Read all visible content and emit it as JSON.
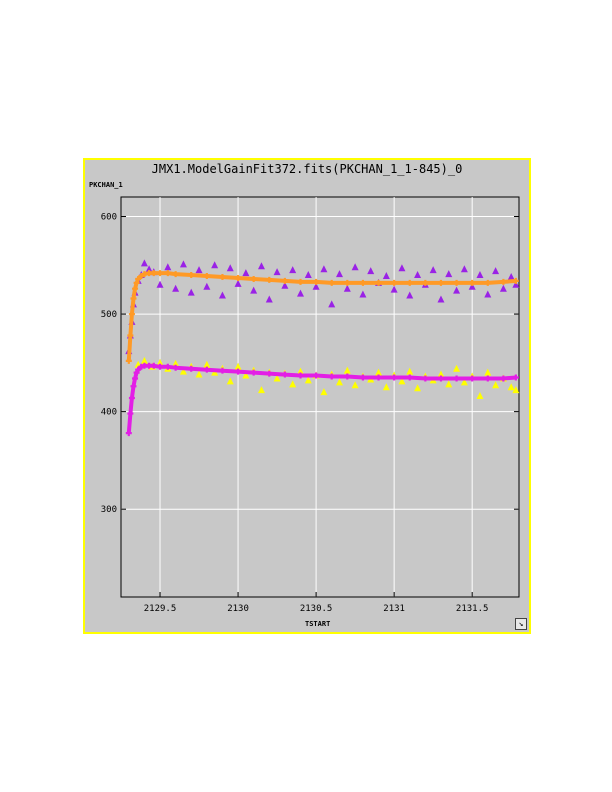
{
  "window": {
    "title": "JMX1.ModelGainFit372.fits(PKCHAN_1_1-845)_0"
  },
  "colors": {
    "panel_bg": "#c8c8c8",
    "panel_border": "#ffff00",
    "grid": "#ffffff",
    "series_upper_data": "#9a22e6",
    "series_upper_fit": "#ff9a26",
    "series_lower_data": "#ffff00",
    "series_lower_fit": "#e31ee6"
  },
  "chart_data": {
    "type": "scatter",
    "title": "JMX1.ModelGainFit372.fits(PKCHAN_1_1-845)_0",
    "xlabel": "TSTART",
    "ylabel": "PKCHAN_1",
    "xlim": [
      2129.25,
      2131.8
    ],
    "ylim": [
      210,
      620
    ],
    "xticks": [
      2129.5,
      2130,
      2130.5,
      2131,
      2131.5
    ],
    "xtick_labels": [
      "2129.5",
      "2130",
      "2130.5",
      "2131",
      "2131.5"
    ],
    "yticks": [
      300,
      400,
      500,
      600
    ],
    "ytick_labels": [
      "300",
      "400",
      "500",
      "600"
    ],
    "grid": true,
    "series": [
      {
        "marker": "triangle",
        "color": "#9a22e6",
        "x": [
          2129.3,
          2129.31,
          2129.32,
          2129.33,
          2129.34,
          2129.36,
          2129.38,
          2129.4,
          2129.43,
          2129.46,
          2129.5,
          2129.55,
          2129.6,
          2129.65,
          2129.7,
          2129.75,
          2129.8,
          2129.85,
          2129.9,
          2129.95,
          2130.0,
          2130.05,
          2130.1,
          2130.15,
          2130.2,
          2130.25,
          2130.3,
          2130.35,
          2130.4,
          2130.45,
          2130.5,
          2130.55,
          2130.6,
          2130.65,
          2130.7,
          2130.75,
          2130.8,
          2130.85,
          2130.9,
          2130.95,
          2131.0,
          2131.05,
          2131.1,
          2131.15,
          2131.2,
          2131.25,
          2131.3,
          2131.35,
          2131.4,
          2131.45,
          2131.5,
          2131.55,
          2131.6,
          2131.65,
          2131.7,
          2131.75,
          2131.78
        ],
        "y": [
          462,
          478,
          492,
          510,
          522,
          534,
          540,
          552,
          546,
          543,
          530,
          548,
          526,
          551,
          522,
          545,
          528,
          550,
          519,
          547,
          531,
          542,
          524,
          549,
          515,
          543,
          529,
          545,
          521,
          540,
          528,
          546,
          510,
          541,
          526,
          548,
          520,
          544,
          532,
          539,
          525,
          547,
          519,
          540,
          530,
          545,
          515,
          541,
          524,
          546,
          528,
          540,
          520,
          544,
          526,
          538,
          530
        ]
      },
      {
        "marker": "plus",
        "color": "#ff9a26",
        "x": [
          2129.3,
          2129.31,
          2129.32,
          2129.33,
          2129.34,
          2129.35,
          2129.36,
          2129.38,
          2129.4,
          2129.43,
          2129.46,
          2129.5,
          2129.55,
          2129.6,
          2129.7,
          2129.8,
          2129.9,
          2130.0,
          2130.1,
          2130.2,
          2130.3,
          2130.4,
          2130.5,
          2130.6,
          2130.7,
          2130.8,
          2130.9,
          2131.0,
          2131.1,
          2131.2,
          2131.3,
          2131.4,
          2131.5,
          2131.6,
          2131.7,
          2131.78
        ],
        "y": [
          452,
          478,
          500,
          516,
          526,
          532,
          536,
          539,
          541,
          542,
          542,
          542,
          542,
          541,
          540,
          539,
          538,
          537,
          536,
          535,
          534,
          533,
          533,
          532,
          532,
          532,
          532,
          532,
          532,
          532,
          532,
          532,
          532,
          532,
          533,
          534
        ]
      },
      {
        "marker": "triangle",
        "color": "#ffff00",
        "x": [
          2129.36,
          2129.4,
          2129.45,
          2129.5,
          2129.55,
          2129.6,
          2129.65,
          2129.7,
          2129.75,
          2129.8,
          2129.85,
          2129.9,
          2129.95,
          2130.0,
          2130.05,
          2130.1,
          2130.15,
          2130.2,
          2130.25,
          2130.3,
          2130.35,
          2130.4,
          2130.45,
          2130.5,
          2130.55,
          2130.6,
          2130.65,
          2130.7,
          2130.75,
          2130.8,
          2130.85,
          2130.9,
          2130.95,
          2131.0,
          2131.05,
          2131.1,
          2131.15,
          2131.2,
          2131.25,
          2131.3,
          2131.35,
          2131.4,
          2131.45,
          2131.5,
          2131.55,
          2131.6,
          2131.65,
          2131.7,
          2131.75,
          2131.78
        ],
        "y": [
          448,
          452,
          446,
          450,
          444,
          449,
          441,
          446,
          438,
          448,
          440,
          444,
          431,
          446,
          437,
          442,
          422,
          440,
          434,
          439,
          428,
          441,
          432,
          437,
          420,
          438,
          430,
          442,
          427,
          436,
          433,
          440,
          425,
          437,
          431,
          441,
          424,
          436,
          432,
          438,
          428,
          444,
          430,
          436,
          416,
          440,
          427,
          434,
          425,
          422
        ]
      },
      {
        "marker": "plus",
        "color": "#e31ee6",
        "x": [
          2129.3,
          2129.31,
          2129.32,
          2129.33,
          2129.34,
          2129.35,
          2129.36,
          2129.38,
          2129.4,
          2129.43,
          2129.46,
          2129.5,
          2129.55,
          2129.6,
          2129.7,
          2129.8,
          2129.9,
          2130.0,
          2130.1,
          2130.2,
          2130.3,
          2130.4,
          2130.5,
          2130.6,
          2130.7,
          2130.8,
          2130.9,
          2131.0,
          2131.1,
          2131.2,
          2131.3,
          2131.4,
          2131.5,
          2131.6,
          2131.7,
          2131.78
        ],
        "y": [
          378,
          398,
          414,
          426,
          434,
          440,
          443,
          446,
          447,
          447,
          447,
          446,
          446,
          445,
          444,
          443,
          442,
          441,
          440,
          439,
          438,
          437,
          437,
          436,
          436,
          435,
          435,
          435,
          435,
          434,
          434,
          434,
          434,
          434,
          434,
          435
        ]
      }
    ]
  }
}
